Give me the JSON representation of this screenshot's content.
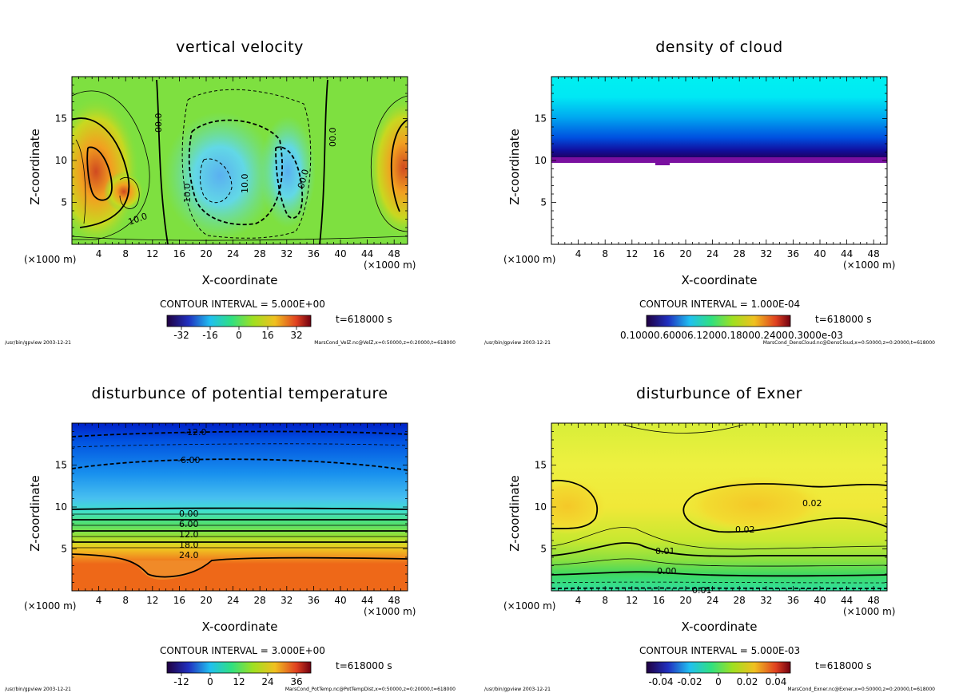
{
  "footer_path": "/usr/bin/gpview  2003-12-21",
  "chart_data": [
    {
      "type": "heatmap",
      "title": "vertical velocity",
      "xlabel": "X-coordinate",
      "ylabel": "Z-coordinate",
      "x_unit_left": "(×1000 m)",
      "x_unit_right": "(×1000 m)",
      "xlim": [
        0,
        50
      ],
      "ylim": [
        0,
        20
      ],
      "x_ticks": [
        "4",
        "8",
        "12",
        "16",
        "20",
        "24",
        "28",
        "32",
        "36",
        "40",
        "44",
        "48"
      ],
      "y_ticks": [
        "5",
        "10",
        "15"
      ],
      "contour_interval": "CONTOUR INTERVAL = 5.000E+00",
      "time": "t=618000 s",
      "colorbar_ticks": [
        "-32",
        "-16",
        "0",
        "16",
        "32"
      ],
      "contour_labels": [
        "00.0",
        "00.0",
        "10.0",
        "10.0",
        "10.0",
        "00.0"
      ],
      "source": "MarsCond_VelZ.nc@VelZ,x=0:50000,z=0:20000,t=618000"
    },
    {
      "type": "heatmap",
      "title": "density of cloud",
      "xlabel": "X-coordinate",
      "ylabel": "Z-coordinate",
      "x_unit_left": "(×1000 m)",
      "x_unit_right": "(×1000 m)",
      "xlim": [
        0,
        50
      ],
      "ylim": [
        0,
        20
      ],
      "x_ticks": [
        "4",
        "8",
        "12",
        "16",
        "20",
        "24",
        "28",
        "32",
        "36",
        "40",
        "44",
        "48"
      ],
      "y_ticks": [
        "5",
        "10",
        "15"
      ],
      "contour_interval": "CONTOUR INTERVAL = 1.000E-04",
      "time": "t=618000 s",
      "colorbar_ticks": [
        "0.10000.60006.12000.18000.24000.3000e-03"
      ],
      "source": "MarsCond_DensCloud.nc@DensCloud,x=0:50000,z=0:20000,t=618000"
    },
    {
      "type": "heatmap",
      "title": "disturbunce of potential temperature",
      "xlabel": "X-coordinate",
      "ylabel": "Z-coordinate",
      "x_unit_left": "(×1000 m)",
      "x_unit_right": "(×1000 m)",
      "xlim": [
        0,
        50
      ],
      "ylim": [
        0,
        20
      ],
      "x_ticks": [
        "4",
        "8",
        "12",
        "16",
        "20",
        "24",
        "28",
        "32",
        "36",
        "40",
        "44",
        "48"
      ],
      "y_ticks": [
        "5",
        "10",
        "15"
      ],
      "contour_interval": "CONTOUR INTERVAL = 3.000E+00",
      "time": "t=618000 s",
      "colorbar_ticks": [
        "-12",
        "0",
        "12",
        "24",
        "36"
      ],
      "contour_labels": [
        "-12.0",
        "-6.00",
        "0.00",
        "6.00",
        "12.0",
        "18.0",
        "24.0"
      ],
      "source": "MarsCond_PotTemp.nc@PotTempDist,x=0:50000,z=0:20000,t=618000"
    },
    {
      "type": "heatmap",
      "title": "disturbunce of Exner",
      "xlabel": "X-coordinate",
      "ylabel": "Z-coordinate",
      "x_unit_left": "(×1000 m)",
      "x_unit_right": "(×1000 m)",
      "xlim": [
        0,
        50
      ],
      "ylim": [
        0,
        20
      ],
      "x_ticks": [
        "4",
        "8",
        "12",
        "16",
        "20",
        "24",
        "28",
        "32",
        "36",
        "40",
        "44",
        "48"
      ],
      "y_ticks": [
        "5",
        "10",
        "15"
      ],
      "contour_interval": "CONTOUR INTERVAL = 5.000E-03",
      "time": "t=618000 s",
      "colorbar_ticks": [
        "-0.04",
        "-0.02",
        "0",
        "0.02",
        "0.04"
      ],
      "contour_labels": [
        "0.02",
        "0.02",
        "0.01",
        "0.00",
        "-0.01"
      ],
      "source": "MarsCond_Exner.nc@Exner,x=0:50000,z=0:20000,t=618000"
    }
  ]
}
